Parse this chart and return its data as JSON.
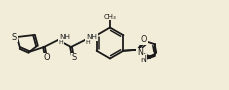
{
  "background_color": "#f2edd8",
  "line_color": "#1a1a1a",
  "line_width": 1.3,
  "figsize": [
    2.3,
    0.9
  ],
  "dpi": 100,
  "xlim": [
    0,
    230
  ],
  "ylim": [
    0,
    90
  ]
}
